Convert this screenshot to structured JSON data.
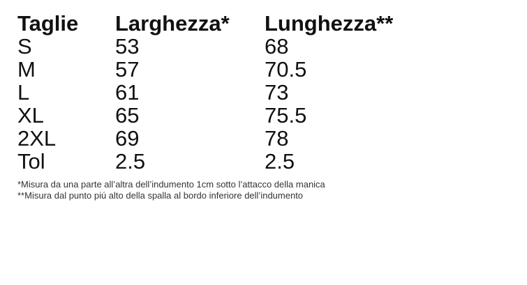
{
  "table": {
    "headers": [
      "Taglie",
      "Larghezza*",
      "Lunghezza**"
    ],
    "rows": [
      {
        "size": "S",
        "width": "53",
        "length": "68"
      },
      {
        "size": "M",
        "width": "57",
        "length": "70.5"
      },
      {
        "size": "L",
        "width": "61",
        "length": "73"
      },
      {
        "size": "XL",
        "width": "65",
        "length": "75.5"
      },
      {
        "size": "2XL",
        "width": "69",
        "length": "78"
      },
      {
        "size": "Tol",
        "width": "2.5",
        "length": "2.5"
      }
    ]
  },
  "footnotes": {
    "width_note": "*Misura da una parte all’altra dell’indumento 1cm sotto l’attacco della manica",
    "length_note": "**Misura dal punto piú alto della spalla al bordo inferiore dell’indumento"
  },
  "colors": {
    "background": "#ffffff",
    "text": "#111111",
    "footnote_text": "#333333"
  }
}
